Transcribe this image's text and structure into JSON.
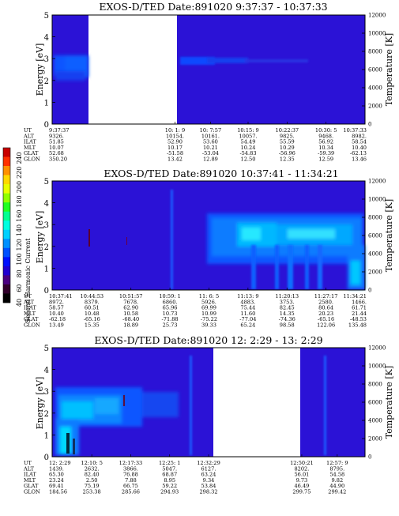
{
  "colorbar": {
    "label": "Second Harmonic Current",
    "ticks": [
      "240",
      "220",
      "200",
      "180",
      "160",
      "140",
      "120",
      "100",
      "80",
      "60",
      "40"
    ],
    "colors": [
      "#c80000",
      "#ff3000",
      "#ff9000",
      "#ffd800",
      "#e8ff00",
      "#90ff00",
      "#20ff20",
      "#00ff90",
      "#00ffe0",
      "#00d0ff",
      "#0090ff",
      "#0050ff",
      "#0010ff",
      "#2000d0",
      "#4a0080",
      "#30002a",
      "#000000"
    ]
  },
  "chart_data": [
    {
      "type": "heatmap",
      "title": "EXOS-D/TED   Date:891020   9:37:37 - 10:37:33",
      "ylabel": "Energy [eV]",
      "y2label": "Temperature [K]",
      "ylim": [
        0,
        5
      ],
      "y2lim": [
        0,
        12000
      ],
      "yticks": [
        "0",
        "1",
        "2",
        "3",
        "4",
        "5"
      ],
      "y2ticks": [
        "0",
        "2000",
        "4000",
        "6000",
        "8000",
        "10000",
        "12000"
      ],
      "time_range": [
        "9:37:37",
        "10:37:33"
      ],
      "data_gaps": [
        [
          "9:46:27",
          "10:01:37"
        ]
      ],
      "param_labels": [
        "UT",
        "ALT",
        "ILAT",
        "MLT",
        "GLAT",
        "GLON"
      ],
      "columns": [
        {
          "UT": "9:37:37",
          "ALT": "9326.",
          "ILAT": "51.85",
          "MLT": "10.07",
          "GLAT": "52.68",
          "GLON": "350.20"
        },
        {
          "UT": "10: 1: 9",
          "ALT": "10154.",
          "ILAT": "52.90",
          "MLT": "10.17",
          "GLAT": "-51.58",
          "GLON": "13.42"
        },
        {
          "UT": "10: 7:57",
          "ALT": "10161.",
          "ILAT": "53.60",
          "MLT": "10.21",
          "GLAT": "-53.04",
          "GLON": "12.89"
        },
        {
          "UT": "10:15: 9",
          "ALT": "10057.",
          "ILAT": "54.49",
          "MLT": "10.24",
          "GLAT": "-54.83",
          "GLON": "12.50"
        },
        {
          "UT": "10:22:37",
          "ALT": "9825.",
          "ILAT": "55.59",
          "MLT": "10.29",
          "GLAT": "-56.96",
          "GLON": "12.35"
        },
        {
          "UT": "10:30: 5",
          "ALT": "9468.",
          "ILAT": "56.92",
          "MLT": "10.34",
          "GLAT": "-59.39",
          "GLON": "12.59"
        },
        {
          "UT": "10:37:33",
          "ALT": "8982.",
          "ILAT": "58.54",
          "MLT": "10.40",
          "GLAT": "-62.13",
          "GLON": "13.46"
        }
      ]
    },
    {
      "type": "heatmap",
      "title": "EXOS-D/TED   Date:891020   10:37:41 - 11:34:21",
      "ylabel": "Energy [eV]",
      "y2label": "Temperature [K]",
      "ylim": [
        0,
        5
      ],
      "y2lim": [
        0,
        12000
      ],
      "yticks": [
        "0",
        "1",
        "2",
        "3",
        "4",
        "5"
      ],
      "y2ticks": [
        "0",
        "2000",
        "4000",
        "6000",
        "8000",
        "10000",
        "12000"
      ],
      "time_range": [
        "10:37:41",
        "11:34:21"
      ],
      "data_gaps": [],
      "param_labels": [
        "UT",
        "ALT",
        "ILAT",
        "MLT",
        "GLAT",
        "GLON"
      ],
      "columns": [
        {
          "UT": "10:37:41",
          "ALT": "8972.",
          "ILAT": "58.57",
          "MLT": "10.40",
          "GLAT": "-62.18",
          "GLON": "13.49"
        },
        {
          "UT": "10:44:53",
          "ALT": "8379.",
          "ILAT": "60.51",
          "MLT": "10.48",
          "GLAT": "-65.16",
          "GLON": "15.35"
        },
        {
          "UT": "10:51:57",
          "ALT": "7678.",
          "ILAT": "62.90",
          "MLT": "10.58",
          "GLAT": "-68.40",
          "GLON": "18.89"
        },
        {
          "UT": "10:59: 1",
          "ALT": "6860.",
          "ILAT": "65.96",
          "MLT": "10.73",
          "GLAT": "-71.88",
          "GLON": "25.73"
        },
        {
          "UT": "11: 6: 5",
          "ALT": "5926.",
          "ILAT": "69.99",
          "MLT": "10.99",
          "GLAT": "-75.22",
          "GLON": "39.33"
        },
        {
          "UT": "11:13: 9",
          "ALT": "4883.",
          "ILAT": "75.44",
          "MLT": "11.60",
          "GLAT": "-77.04",
          "GLON": "65.24"
        },
        {
          "UT": "11:20:13",
          "ALT": "3753.",
          "ILAT": "82.45",
          "MLT": "14.35",
          "GLAT": "-74.36",
          "GLON": "98.58"
        },
        {
          "UT": "11:27:17",
          "ALT": "2580.",
          "ILAT": "80.64",
          "MLT": "20.23",
          "GLAT": "-65.16",
          "GLON": "122.06"
        },
        {
          "UT": "11:34:21",
          "ALT": "1466.",
          "ILAT": "61.71",
          "MLT": "21.44",
          "GLAT": "-48.53",
          "GLON": "135.48"
        }
      ]
    },
    {
      "type": "heatmap",
      "title": "EXOS-D/TED   Date:891020   12: 2:29 - 13: 2:29",
      "ylabel": "Energy [eV]",
      "y2label": "Temperature [K]",
      "ylim": [
        0,
        5
      ],
      "y2lim": [
        0,
        12000
      ],
      "yticks": [
        "0",
        "1",
        "2",
        "3",
        "4",
        "5"
      ],
      "y2ticks": [
        "0",
        "2000",
        "4000",
        "6000",
        "8000",
        "10000",
        "12000"
      ],
      "time_range": [
        "12: 2:29",
        "13: 2:29"
      ],
      "data_gaps": [
        [
          "12:32:29",
          "12:50:21"
        ]
      ],
      "param_labels": [
        "UT",
        "ALT",
        "ILAT",
        "MLT",
        "GLAT",
        "GLON"
      ],
      "columns": [
        {
          "UT": "12: 2:29",
          "ALT": "1439.",
          "ILAT": "65.30",
          "MLT": "23.24",
          "GLAT": "69.41",
          "GLON": "184.56"
        },
        {
          "UT": "12:10: 5",
          "ALT": "2632.",
          "ILAT": "82.40",
          "MLT": "2.50",
          "GLAT": "75.19",
          "GLON": "253.38"
        },
        {
          "UT": "12:17:33",
          "ALT": "3866.",
          "ILAT": "76.88",
          "MLT": "7.88",
          "GLAT": "66.75",
          "GLON": "285.66"
        },
        {
          "UT": "12:25: 1",
          "ALT": "5047.",
          "ILAT": "68.87",
          "MLT": "8.95",
          "GLAT": "59.22",
          "GLON": "294.93"
        },
        {
          "UT": "12:32:29",
          "ALT": "6127.",
          "ILAT": "63.24",
          "MLT": "9.34",
          "GLAT": "53.84",
          "GLON": "298.32"
        },
        {
          "UT": "12:50:21",
          "ALT": "8202.",
          "ILAT": "56.01",
          "MLT": "9.73",
          "GLAT": "46.49",
          "GLON": "299.75"
        },
        {
          "UT": "12:57: 9",
          "ALT": "8795.",
          "ILAT": "54.58",
          "MLT": "9.82",
          "GLAT": "44.90",
          "GLON": "299.42"
        }
      ]
    }
  ]
}
